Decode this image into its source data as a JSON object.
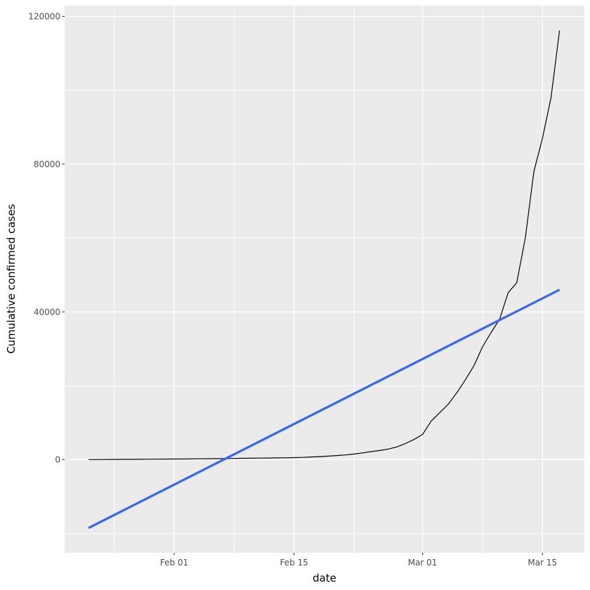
{
  "figure": {
    "background": "#FFFFFF",
    "panel_background": "#EBEBEB",
    "grid_color": "#FFFFFF",
    "tick_mark_color": "#333333",
    "tick_label_color": "#4D4D4D",
    "axis_title_color": "#000000"
  },
  "chart_data": {
    "type": "line",
    "title": "",
    "xlabel": "date",
    "ylabel": "Cumulative confirmed cases",
    "grid": true,
    "legend": false,
    "x_unit": "days (index 0 = first plotted date, ~10 days before Feb 01)",
    "x_range": [
      -2.8,
      57.9
    ],
    "y_range": [
      -25235,
      122935
    ],
    "x_ticks": [
      {
        "day": 10,
        "label": "Feb 01"
      },
      {
        "day": 24,
        "label": "Feb 15"
      },
      {
        "day": 39,
        "label": "Mar 01"
      },
      {
        "day": 53,
        "label": "Mar 15"
      }
    ],
    "x_minor_days": [
      3,
      17,
      31,
      46
    ],
    "y_ticks": [
      {
        "value": 0,
        "label": "0"
      },
      {
        "value": 40000,
        "label": "40000"
      },
      {
        "value": 80000,
        "label": "80000"
      },
      {
        "value": 120000,
        "label": "120000"
      }
    ],
    "y_minor_values": [
      -20000,
      20000,
      60000,
      100000
    ],
    "series": [
      {
        "name": "cumulative-cases-line",
        "color": "#000000",
        "width": 1.2,
        "y": [
          0,
          10,
          25,
          40,
          55,
          65,
          85,
          105,
          120,
          135,
          150,
          165,
          185,
          205,
          225,
          250,
          280,
          310,
          340,
          370,
          400,
          430,
          460,
          490,
          530,
          600,
          700,
          810,
          930,
          1090,
          1270,
          1510,
          1810,
          2150,
          2460,
          2860,
          3420,
          4350,
          5450,
          6800,
          10400,
          12700,
          15000,
          18100,
          21600,
          25400,
          30500,
          34400,
          38000,
          45200,
          47900,
          60000,
          78000,
          87000,
          98000,
          116200
        ]
      },
      {
        "name": "linear-trend-line",
        "color": "#3366FF",
        "width": 3.2,
        "x": [
          0,
          55
        ],
        "y": [
          -18500,
          46000
        ]
      }
    ]
  }
}
